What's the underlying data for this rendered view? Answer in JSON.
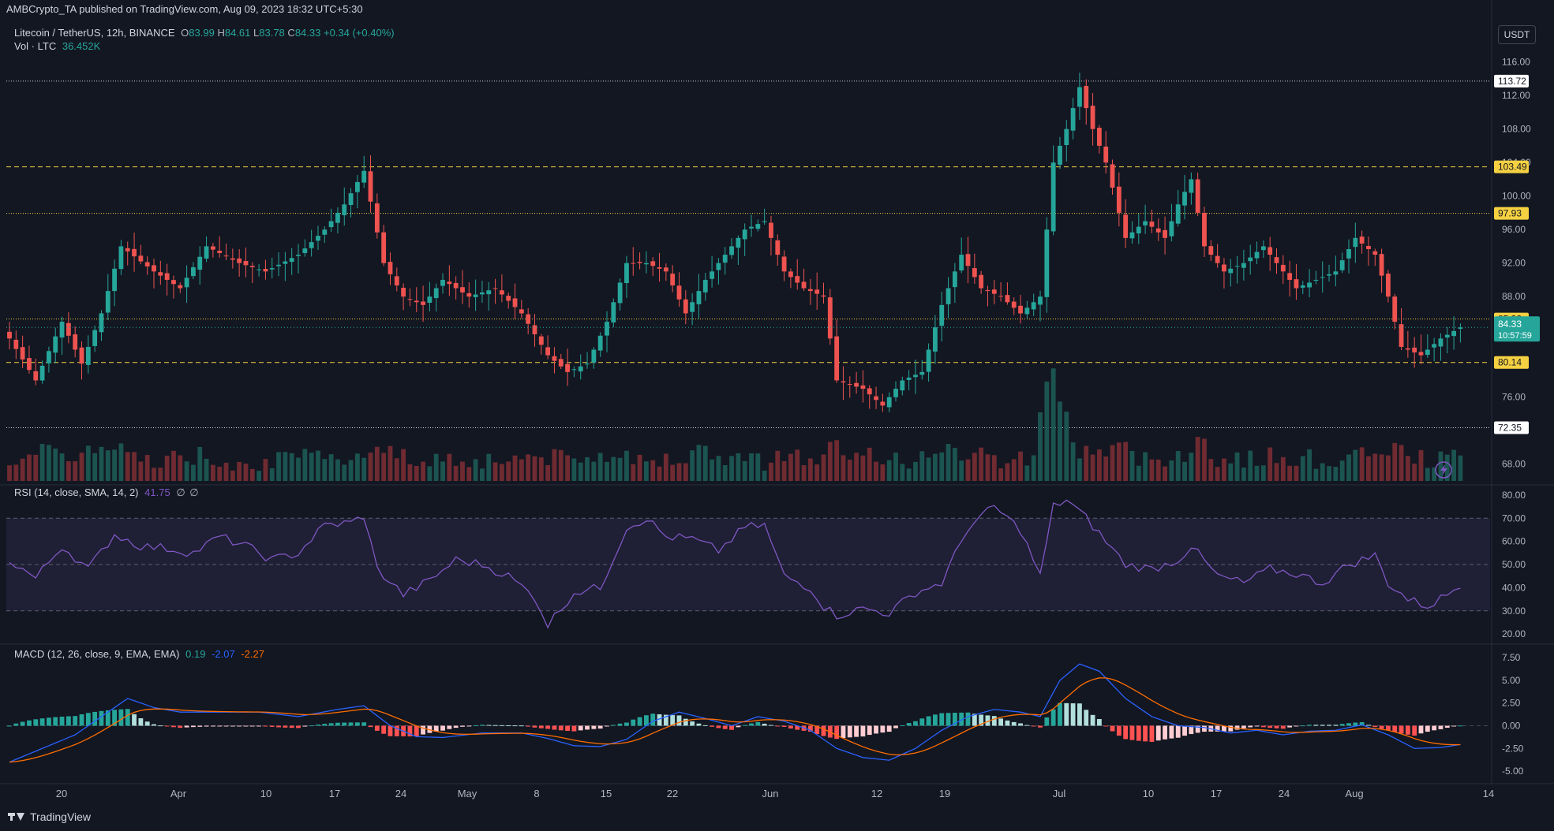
{
  "watermark": "AMBCrypto_TA published on TradingView.com, Aug 09, 2023 18:32 UTC+5:30",
  "legend": {
    "symbol": "Litecoin / TetherUS, 12h, BINANCE",
    "o_label": "O",
    "o": "83.99",
    "h_label": "H",
    "h": "84.61",
    "l_label": "L",
    "l": "83.78",
    "c_label": "C",
    "c": "84.33",
    "change": "+0.34 (+0.40%)",
    "vol_label": "Vol · LTC",
    "vol": "36.452K"
  },
  "currency_button": "USDT",
  "rsi_legend": {
    "label": "RSI (14, close, SMA, 14, 2)",
    "value": "41.75",
    "na1": "∅",
    "na2": "∅"
  },
  "macd_legend": {
    "label": "MACD (12, 26, close, 9, EMA, EMA)",
    "hist": "0.19",
    "macd": "-2.07",
    "signal": "-2.27"
  },
  "brand": "TradingView",
  "colors": {
    "up": "#26a69a",
    "down": "#ef5350",
    "yellow": "#f5d142",
    "rsi": "#7e57c2",
    "macd": "#2962ff",
    "signal": "#ff6d00",
    "bg": "#131722"
  },
  "icons": {
    "logo": "tradingview-logo-icon",
    "replay": "lightning-icon"
  },
  "chart_data": {
    "type": "candlestick",
    "x_ticks": [
      "20",
      "Apr",
      "10",
      "17",
      "24",
      "May",
      "8",
      "15",
      "22",
      "Jun",
      "12",
      "19",
      "Jul",
      "10",
      "17",
      "24",
      "Aug",
      "14"
    ],
    "price_axis": {
      "ticks": [
        "116.00",
        "112.00",
        "108.00",
        "104.00",
        "100.00",
        "96.00",
        "92.00",
        "88.00",
        "84.00",
        "80.00",
        "76.00",
        "72.00",
        "68.00"
      ],
      "ylim": [
        66,
        117
      ]
    },
    "horizontal_levels": [
      {
        "value": 113.72,
        "label": "113.72",
        "style": "dotted-white"
      },
      {
        "value": 103.49,
        "label": "103.49",
        "style": "dashed-yellow"
      },
      {
        "value": 97.93,
        "label": "97.93",
        "style": "dotted-yellow"
      },
      {
        "value": 85.32,
        "label": "85.32",
        "style": "dotted-yellow"
      },
      {
        "value": 80.14,
        "label": "80.14",
        "style": "dashed-yellow"
      },
      {
        "value": 72.35,
        "label": "72.35",
        "style": "dotted-white"
      }
    ],
    "last_price": {
      "value": 84.33,
      "label": "84.33",
      "countdown": "10:57:59"
    },
    "close_anchors": [
      [
        0,
        83
      ],
      [
        4,
        78
      ],
      [
        8,
        85
      ],
      [
        11,
        80
      ],
      [
        14,
        86
      ],
      [
        17,
        94
      ],
      [
        22,
        91
      ],
      [
        26,
        89
      ],
      [
        30,
        94
      ],
      [
        35,
        92
      ],
      [
        39,
        91
      ],
      [
        44,
        93
      ],
      [
        48,
        96
      ],
      [
        51,
        99
      ],
      [
        54,
        103
      ],
      [
        57,
        92
      ],
      [
        60,
        88
      ],
      [
        63,
        87
      ],
      [
        66,
        90
      ],
      [
        70,
        88
      ],
      [
        74,
        89
      ],
      [
        78,
        86
      ],
      [
        82,
        81
      ],
      [
        85,
        79
      ],
      [
        88,
        80
      ],
      [
        91,
        85
      ],
      [
        94,
        92
      ],
      [
        97,
        92
      ],
      [
        100,
        91
      ],
      [
        103,
        86
      ],
      [
        106,
        90
      ],
      [
        109,
        93
      ],
      [
        112,
        96
      ],
      [
        115,
        97
      ],
      [
        118,
        91
      ],
      [
        121,
        89
      ],
      [
        124,
        88
      ],
      [
        126,
        78
      ],
      [
        130,
        77
      ],
      [
        133,
        75
      ],
      [
        136,
        78
      ],
      [
        139,
        79
      ],
      [
        142,
        87
      ],
      [
        145,
        93
      ],
      [
        148,
        89
      ],
      [
        151,
        88
      ],
      [
        154,
        86
      ],
      [
        157,
        88
      ],
      [
        159,
        104
      ],
      [
        161,
        108
      ],
      [
        163,
        113
      ],
      [
        165,
        108
      ],
      [
        167,
        104
      ],
      [
        170,
        95
      ],
      [
        173,
        97
      ],
      [
        176,
        95
      ],
      [
        178,
        99
      ],
      [
        180,
        102
      ],
      [
        182,
        94
      ],
      [
        185,
        91
      ],
      [
        188,
        92
      ],
      [
        191,
        94
      ],
      [
        194,
        91
      ],
      [
        196,
        89
      ],
      [
        199,
        90
      ],
      [
        202,
        91
      ],
      [
        205,
        95
      ],
      [
        208,
        93
      ],
      [
        210,
        88
      ],
      [
        212,
        82
      ],
      [
        215,
        81
      ],
      [
        218,
        83
      ],
      [
        221,
        84.33
      ]
    ],
    "rsi_axis": {
      "ticks": [
        "80.00",
        "70.00",
        "60.00",
        "50.00",
        "40.00",
        "30.00",
        "20.00"
      ],
      "ylim": [
        18,
        82
      ],
      "band": [
        30,
        70
      ]
    },
    "rsi_anchors": [
      [
        0,
        52
      ],
      [
        4,
        44
      ],
      [
        8,
        58
      ],
      [
        12,
        48
      ],
      [
        16,
        63
      ],
      [
        20,
        58
      ],
      [
        24,
        57
      ],
      [
        28,
        55
      ],
      [
        32,
        62
      ],
      [
        36,
        58
      ],
      [
        40,
        52
      ],
      [
        44,
        55
      ],
      [
        48,
        67
      ],
      [
        52,
        68
      ],
      [
        54,
        71
      ],
      [
        56,
        48
      ],
      [
        60,
        37
      ],
      [
        64,
        43
      ],
      [
        68,
        52
      ],
      [
        72,
        50
      ],
      [
        76,
        45
      ],
      [
        80,
        36
      ],
      [
        82,
        24
      ],
      [
        86,
        38
      ],
      [
        90,
        40
      ],
      [
        94,
        66
      ],
      [
        97,
        70
      ],
      [
        100,
        62
      ],
      [
        104,
        61
      ],
      [
        108,
        56
      ],
      [
        112,
        66
      ],
      [
        115,
        67
      ],
      [
        118,
        45
      ],
      [
        122,
        40
      ],
      [
        124,
        32
      ],
      [
        126,
        28
      ],
      [
        130,
        31
      ],
      [
        134,
        29
      ],
      [
        138,
        38
      ],
      [
        142,
        42
      ],
      [
        146,
        66
      ],
      [
        150,
        75
      ],
      [
        154,
        65
      ],
      [
        157,
        45
      ],
      [
        159,
        75
      ],
      [
        161,
        78
      ],
      [
        164,
        70
      ],
      [
        167,
        60
      ],
      [
        170,
        50
      ],
      [
        174,
        48
      ],
      [
        178,
        52
      ],
      [
        180,
        58
      ],
      [
        184,
        45
      ],
      [
        188,
        42
      ],
      [
        192,
        48
      ],
      [
        196,
        46
      ],
      [
        200,
        42
      ],
      [
        204,
        50
      ],
      [
        208,
        54
      ],
      [
        210,
        42
      ],
      [
        213,
        35
      ],
      [
        216,
        32
      ],
      [
        219,
        37
      ],
      [
        221,
        41.75
      ]
    ],
    "macd_axis": {
      "ticks": [
        "7.50",
        "5.00",
        "2.50",
        "0.00",
        "-2.50",
        "-5.00"
      ],
      "ylim": [
        -5.6,
        8.2
      ]
    },
    "macd_anchors": [
      [
        0,
        -4
      ],
      [
        5,
        -2.5
      ],
      [
        10,
        -1
      ],
      [
        14,
        1
      ],
      [
        18,
        3
      ],
      [
        22,
        2
      ],
      [
        26,
        1.5
      ],
      [
        32,
        1.5
      ],
      [
        38,
        1.5
      ],
      [
        44,
        1
      ],
      [
        50,
        1.8
      ],
      [
        54,
        2.2
      ],
      [
        58,
        0
      ],
      [
        62,
        -1.2
      ],
      [
        66,
        -1.3
      ],
      [
        72,
        -0.8
      ],
      [
        78,
        -0.8
      ],
      [
        82,
        -1.4
      ],
      [
        86,
        -2.2
      ],
      [
        90,
        -2.3
      ],
      [
        94,
        -1.5
      ],
      [
        98,
        0.5
      ],
      [
        102,
        1.5
      ],
      [
        106,
        0.8
      ],
      [
        110,
        0
      ],
      [
        114,
        1
      ],
      [
        118,
        0.5
      ],
      [
        122,
        -0.5
      ],
      [
        126,
        -2.5
      ],
      [
        130,
        -3.5
      ],
      [
        134,
        -3.8
      ],
      [
        138,
        -2.5
      ],
      [
        142,
        -0.5
      ],
      [
        146,
        1
      ],
      [
        150,
        1.8
      ],
      [
        154,
        1.5
      ],
      [
        157,
        1
      ],
      [
        160,
        5
      ],
      [
        163,
        6.8
      ],
      [
        166,
        6
      ],
      [
        170,
        3
      ],
      [
        174,
        1
      ],
      [
        178,
        0
      ],
      [
        182,
        -0.2
      ],
      [
        186,
        -0.8
      ],
      [
        190,
        -0.5
      ],
      [
        194,
        -1
      ],
      [
        198,
        -0.6
      ],
      [
        202,
        -0.5
      ],
      [
        206,
        0.1
      ],
      [
        210,
        -1
      ],
      [
        214,
        -2.5
      ],
      [
        218,
        -2.4
      ],
      [
        221,
        -2.07
      ]
    ]
  }
}
